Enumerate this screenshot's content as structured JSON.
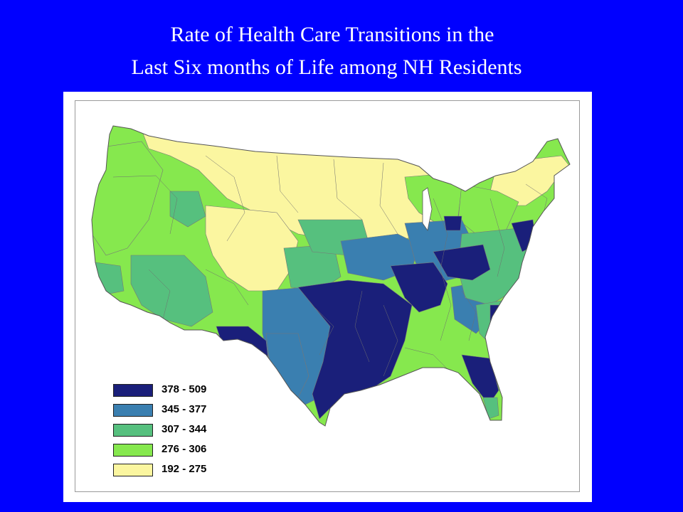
{
  "title": {
    "line1": "Rate of Health Care Transitions in the",
    "line2": "Last Six months of Life among NH Residents"
  },
  "colors": {
    "background": "#0000ff",
    "panel": "#ffffff",
    "border": "#8a8a8a"
  },
  "legend": {
    "items": [
      {
        "label": "378 - 509",
        "color": "#1a1f7a"
      },
      {
        "label": "345 - 377",
        "color": "#3a7fb0"
      },
      {
        "label": "307 - 344",
        "color": "#56c07e"
      },
      {
        "label": "276 - 306",
        "color": "#86e84e"
      },
      {
        "label": "192 - 275",
        "color": "#fbf6a0"
      }
    ]
  }
}
